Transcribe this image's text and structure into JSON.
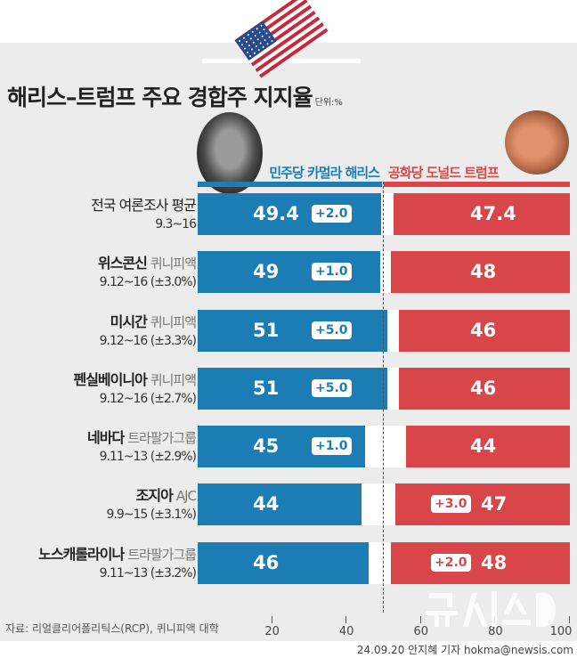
{
  "chart_data": {
    "type": "bar",
    "title": "해리스–트럼프 주요 경합주 지지율",
    "unit": "단위:%",
    "xlim": [
      0,
      100
    ],
    "x_ticks": [
      "20",
      "40",
      "60",
      "80",
      "100"
    ],
    "series": [
      {
        "name": "민주당 카멀라 해리스",
        "color": "#1c7db5"
      },
      {
        "name": "공화당 도널드 트럼프",
        "color": "#d9464a"
      }
    ],
    "rows": [
      {
        "name": "전국 여론조사 평균",
        "pollster": "",
        "dates": "9.3~16",
        "harris": 49.4,
        "trump": 47.4,
        "harris_label": "49.4",
        "trump_label": "47.4",
        "lead": "+2.0",
        "leader": "harris"
      },
      {
        "name": "위스콘신",
        "pollster": "퀴니피액",
        "dates": "9.12~16 (±3.0%)",
        "harris": 49,
        "trump": 48,
        "harris_label": "49",
        "trump_label": "48",
        "lead": "+1.0",
        "leader": "harris"
      },
      {
        "name": "미시간",
        "pollster": "퀴니피액",
        "dates": "9.12~16 (±3.3%)",
        "harris": 51,
        "trump": 46,
        "harris_label": "51",
        "trump_label": "46",
        "lead": "+5.0",
        "leader": "harris"
      },
      {
        "name": "펜실베이니아",
        "pollster": "퀴니피액",
        "dates": "9.12~16 (±2.7%)",
        "harris": 51,
        "trump": 46,
        "harris_label": "51",
        "trump_label": "46",
        "lead": "+5.0",
        "leader": "harris"
      },
      {
        "name": "네바다",
        "pollster": "트라팔가그룹",
        "dates": "9.11~13 (±2.9%)",
        "harris": 45,
        "trump": 44,
        "harris_label": "45",
        "trump_label": "44",
        "lead": "+1.0",
        "leader": "harris"
      },
      {
        "name": "조지아",
        "pollster": "AJC",
        "dates": "9.9~15 (±3.1%)",
        "harris": 44,
        "trump": 47,
        "harris_label": "44",
        "trump_label": "47",
        "lead": "+3.0",
        "leader": "trump"
      },
      {
        "name": "노스캐롤라이나",
        "pollster": "트라팔가그룹",
        "dates": "9.11~13 (±3.2%)",
        "harris": 46,
        "trump": 48,
        "harris_label": "46",
        "trump_label": "48",
        "lead": "+2.0",
        "leader": "trump"
      }
    ]
  },
  "footer": {
    "source": "자료: 리얼클리어폴리틱스(RCP), 퀴니피액 대학",
    "credit": "24.09.20 안지혜 기자 hokma@newsis.com",
    "watermark": "뉴시스"
  }
}
